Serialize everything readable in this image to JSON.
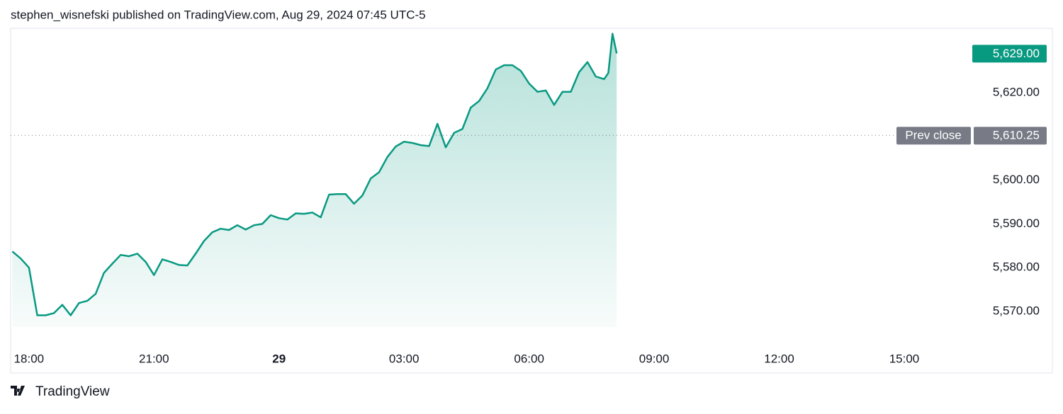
{
  "header": "stephen_wisnefski published on TradingView.com, Aug 29, 2024 07:45 UTC-5",
  "footer": "TradingView",
  "chart_data": {
    "type": "area",
    "x": [
      -0.4,
      -0.2,
      0,
      0.2,
      0.4,
      0.6,
      0.8,
      1.0,
      1.2,
      1.4,
      1.6,
      1.8,
      2.0,
      2.2,
      2.4,
      2.6,
      2.8,
      3.0,
      3.2,
      3.4,
      3.6,
      3.8,
      4.0,
      4.2,
      4.4,
      4.6,
      4.8,
      5.0,
      5.2,
      5.4,
      5.6,
      5.8,
      6.0,
      6.2,
      6.4,
      6.6,
      6.8,
      7.0,
      7.2,
      7.4,
      7.6,
      7.8,
      8.0,
      8.2,
      8.4,
      8.6,
      8.8,
      9.0,
      9.2,
      9.4,
      9.6,
      9.8,
      10.0,
      10.2,
      10.4,
      10.6,
      10.8,
      11.0,
      11.2,
      11.4,
      11.6,
      11.8,
      12.0,
      12.2,
      12.4,
      12.6,
      12.8,
      13.0,
      13.2,
      13.4,
      13.6,
      13.8,
      13.9,
      14.0,
      14.1
    ],
    "values": [
      5583.7,
      5582.1,
      5580.0,
      5569.1,
      5569.1,
      5569.6,
      5571.5,
      5569.1,
      5571.9,
      5572.4,
      5574.0,
      5578.8,
      5580.9,
      5582.9,
      5582.6,
      5583.2,
      5581.3,
      5578.3,
      5581.9,
      5581.3,
      5580.6,
      5580.5,
      5583.2,
      5586.1,
      5588.1,
      5588.9,
      5588.6,
      5589.7,
      5588.7,
      5589.7,
      5590.0,
      5592.0,
      5591.3,
      5591.0,
      5592.4,
      5592.3,
      5592.6,
      5591.5,
      5596.7,
      5596.8,
      5596.8,
      5594.6,
      5596.5,
      5600.4,
      5601.8,
      5605.3,
      5607.7,
      5608.8,
      5608.5,
      5608.0,
      5607.8,
      5612.9,
      5607.5,
      5610.8,
      5611.7,
      5616.6,
      5618.1,
      5621.0,
      5625.3,
      5626.3,
      5626.3,
      5625.0,
      5622.1,
      5620.2,
      5620.5,
      5617.2,
      5620.2,
      5620.2,
      5624.7,
      5627.0,
      5623.7,
      5623.1,
      5624.5,
      5633.5,
      5629
    ],
    "color": "#089981",
    "xlim": [
      -0.44,
      23.5
    ],
    "xticks": [
      {
        "value": 0,
        "label": "18:00"
      },
      {
        "value": 3,
        "label": "21:00"
      },
      {
        "value": 6,
        "label": "29"
      },
      {
        "value": 9,
        "label": "03:00"
      },
      {
        "value": 12,
        "label": "06:00"
      },
      {
        "value": 15,
        "label": "09:00"
      },
      {
        "value": 18,
        "label": "12:00"
      },
      {
        "value": 21,
        "label": "15:00"
      }
    ],
    "ylim": [
      5561.9,
      5634.4
    ],
    "yticks": [
      {
        "value": 5570,
        "label": "5,570.00"
      },
      {
        "value": 5580,
        "label": "5,580.00"
      },
      {
        "value": 5590,
        "label": "5,590.00"
      },
      {
        "value": 5600,
        "label": "5,600.00"
      },
      {
        "value": 5610,
        "label": "5,610.00"
      },
      {
        "value": 5620,
        "label": "5,620.00"
      }
    ],
    "last_price": {
      "value": 5629,
      "label": "5,629.00"
    },
    "prev_close": {
      "name": "Prev close",
      "value": 5610.25,
      "label": "5,610.25"
    }
  }
}
